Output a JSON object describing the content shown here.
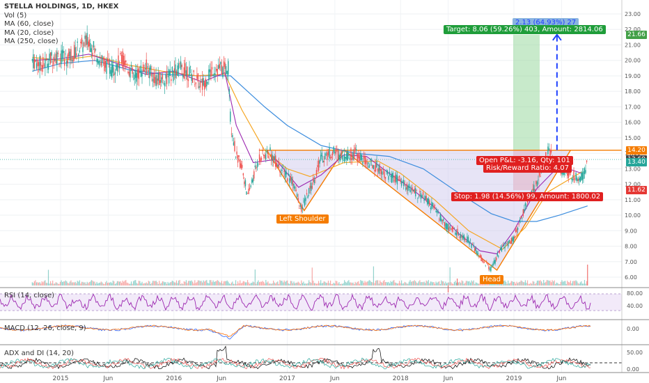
{
  "colors": {
    "up": "#26a69a",
    "down": "#ef5350",
    "pattern": "#f57c00",
    "ma_fast": "#9c27b0",
    "ma_mid": "#f5a623",
    "ma_slow": "#3c8dde",
    "rsi": "#9c27b0",
    "target_green": "#43a047",
    "stop_red": "#e53935",
    "blue_arrow": "#1e40ff"
  },
  "legend": {
    "title": "STELLA HOLDINGS, 1D, HKEX",
    "vol": "Vol (5)",
    "ma60": "MA (60, close)",
    "ma20": "MA (20, close)",
    "ma250": "MA (250, close)"
  },
  "panes": {
    "rsi": "RSI (14, close)",
    "macd": "MACD (12, 26, close, 9)",
    "adx": "ADX and DI (14, 20)"
  },
  "annotations": {
    "target": "Target: 8.06 (59.26%) 403, Amount: 2814.06",
    "target_hidden": "2.13 (64.93%) 27",
    "open_pl": "Open P&L: -3.16, Qty: 101",
    "risk_reward": "Risk/Reward Ratio: 4.07",
    "stop": "Stop: 1.98 (14.56%) 99, Amount: 1800.02",
    "left_shoulder": "Left Shoulder",
    "head": "Head"
  },
  "price_tags": [
    {
      "value": "21.66",
      "price": 21.66,
      "color": "#43a047"
    },
    {
      "value": "14.20",
      "price": 14.2,
      "color": "#f57c00"
    },
    {
      "value": "13.60",
      "price": 13.6,
      "color": "#444444"
    },
    {
      "value": "13.40",
      "price": 13.4,
      "color": "#26a69a"
    },
    {
      "value": "11.62",
      "price": 11.62,
      "color": "#e53935"
    }
  ],
  "chart_data": {
    "type": "line",
    "title": "STELLA HOLDINGS, 1D, HKEX",
    "x_tick_labels": [
      "2015",
      "Jun",
      "2016",
      "Jun",
      "2017",
      "Jun",
      "2018",
      "Jun",
      "2019",
      "Jun"
    ],
    "y_ticks": [
      "6.00",
      "7.00",
      "8.00",
      "9.00",
      "10.00",
      "11.00",
      "12.00",
      "13.00",
      "14.00",
      "15.00",
      "16.00",
      "17.00",
      "18.00",
      "19.00",
      "20.00",
      "21.00",
      "22.00",
      "23.00"
    ],
    "ylim": [
      5.6,
      23.5
    ],
    "rsi_ticks": [
      "80.00",
      "40.00"
    ],
    "macd_ticks": [
      "0.00"
    ],
    "adx_ticks": [
      "50.00",
      "0.00"
    ],
    "neckline": 14.2,
    "series": [
      {
        "kind": "price",
        "x": [
          2014.75,
          2014.85,
          2014.95,
          2015.05,
          2015.15,
          2015.25,
          2015.35,
          2015.45,
          2015.55,
          2015.65,
          2015.75,
          2015.85,
          2015.95,
          2016.05,
          2016.15,
          2016.25,
          2016.35,
          2016.45,
          2016.48,
          2016.5,
          2016.55,
          2016.6,
          2016.65,
          2016.75,
          2016.85,
          2016.95,
          2017.05,
          2017.12,
          2017.2,
          2017.3,
          2017.4,
          2017.5,
          2017.6,
          2017.7,
          2017.8,
          2017.9,
          2018.0,
          2018.1,
          2018.2,
          2018.3,
          2018.4,
          2018.5,
          2018.6,
          2018.7,
          2018.8,
          2018.85,
          2018.9,
          2019.0,
          2019.1,
          2019.2,
          2019.3,
          2019.4,
          2019.5,
          2019.6,
          2019.65
        ],
        "values": [
          20.0,
          19.7,
          20.3,
          20.1,
          20.7,
          21.3,
          20.0,
          19.4,
          20.1,
          18.9,
          19.6,
          18.7,
          18.9,
          19.5,
          19.1,
          18.4,
          19.5,
          19.4,
          19.6,
          16.0,
          13.8,
          13.2,
          11.2,
          13.7,
          14.0,
          12.9,
          12.2,
          10.3,
          11.6,
          13.7,
          14.1,
          13.8,
          14.0,
          13.4,
          13.1,
          12.5,
          12.2,
          11.6,
          11.2,
          10.4,
          9.3,
          8.9,
          8.4,
          7.3,
          6.5,
          7.3,
          7.9,
          8.5,
          10.6,
          12.0,
          14.2,
          13.0,
          12.6,
          12.4,
          13.4
        ]
      },
      {
        "name": "MA (20, close)",
        "x": [
          2014.75,
          2015.0,
          2015.25,
          2015.5,
          2015.75,
          2016.0,
          2016.25,
          2016.45,
          2016.55,
          2016.7,
          2016.9,
          2017.1,
          2017.3,
          2017.5,
          2017.7,
          2017.9,
          2018.1,
          2018.3,
          2018.5,
          2018.7,
          2018.85,
          2019.0,
          2019.2,
          2019.4,
          2019.6
        ],
        "values": [
          20.0,
          20.1,
          20.4,
          19.8,
          19.1,
          19.3,
          18.6,
          19.2,
          15.8,
          13.4,
          13.6,
          11.8,
          12.6,
          13.9,
          13.8,
          12.7,
          11.7,
          10.5,
          8.9,
          7.7,
          7.5,
          9.0,
          11.7,
          13.2,
          12.7
        ]
      },
      {
        "name": "MA (60, close)",
        "x": [
          2014.75,
          2015.0,
          2015.3,
          2015.6,
          2015.9,
          2016.2,
          2016.45,
          2016.6,
          2016.8,
          2017.0,
          2017.2,
          2017.5,
          2017.8,
          2018.0,
          2018.3,
          2018.6,
          2018.9,
          2019.1,
          2019.3,
          2019.6
        ],
        "values": [
          20.2,
          20.0,
          20.3,
          19.7,
          19.3,
          19.0,
          19.1,
          16.8,
          14.2,
          13.0,
          12.5,
          13.4,
          13.5,
          12.7,
          11.0,
          9.0,
          7.8,
          9.2,
          11.5,
          12.8
        ]
      },
      {
        "name": "MA (250, close)",
        "x": [
          2014.75,
          2015.0,
          2015.3,
          2015.6,
          2015.9,
          2016.2,
          2016.5,
          2016.8,
          2017.0,
          2017.3,
          2017.6,
          2017.9,
          2018.2,
          2018.5,
          2018.8,
          2019.0,
          2019.2,
          2019.4,
          2019.65
        ],
        "values": [
          19.3,
          19.8,
          20.0,
          19.4,
          19.1,
          19.0,
          19.0,
          17.0,
          15.8,
          14.5,
          14.0,
          13.8,
          13.0,
          11.5,
          10.1,
          9.6,
          9.6,
          10.0,
          10.6
        ]
      }
    ]
  }
}
